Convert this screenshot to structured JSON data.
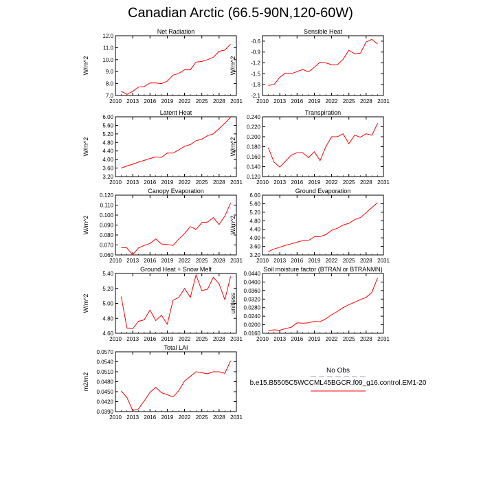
{
  "title": "Canadian Arctic (66.5-90N,120-60W)",
  "legend": {
    "obs_label": "No Obs",
    "model_label": "b.e15.B5505C5WCCML45BGCR.f09_g16.control.EM1-20",
    "obs_color": "#a0a0c0",
    "model_color": "#ff0000"
  },
  "chart_data": [
    {
      "type": "line",
      "title": "Net Radiation",
      "ylabel": "W/m^2",
      "xlim": [
        2010,
        2031
      ],
      "ylim": [
        7.0,
        12.0
      ],
      "xticks": [
        "2010",
        "2013",
        "2016",
        "2019",
        "2022",
        "2025",
        "2028",
        "2031"
      ],
      "yticks": [
        "7.0",
        "8.0",
        "9.0",
        "10.0",
        "11.0",
        "12.0"
      ],
      "series": [
        {
          "x": [
            2011,
            2012,
            2013,
            2014,
            2015,
            2016,
            2017,
            2018,
            2019,
            2020,
            2021,
            2022,
            2023,
            2024,
            2025,
            2026,
            2027,
            2028,
            2029,
            2030
          ],
          "values": [
            7.35,
            7.1,
            7.35,
            7.7,
            7.75,
            8.05,
            8.05,
            8.0,
            8.2,
            8.7,
            8.85,
            9.15,
            9.15,
            9.8,
            9.85,
            10.0,
            10.2,
            10.7,
            10.8,
            11.3
          ]
        }
      ]
    },
    {
      "type": "line",
      "title": "Sensible Heat",
      "ylabel": "W/m^2",
      "xlim": [
        2010,
        2031
      ],
      "ylim": [
        -2.1,
        -0.45
      ],
      "xticks": [
        "2010",
        "2013",
        "2016",
        "2019",
        "2022",
        "2025",
        "2028",
        "2031"
      ],
      "yticks": [
        "-2.1",
        "-1.8",
        "-1.5",
        "-1.2",
        "-0.9",
        "-0.6"
      ],
      "series": [
        {
          "x": [
            2011,
            2012,
            2013,
            2014,
            2015,
            2016,
            2017,
            2018,
            2019,
            2020,
            2021,
            2022,
            2023,
            2024,
            2025,
            2026,
            2027,
            2028,
            2029,
            2030
          ],
          "values": [
            -1.82,
            -1.8,
            -1.6,
            -1.48,
            -1.5,
            -1.44,
            -1.38,
            -1.45,
            -1.32,
            -1.18,
            -1.2,
            -1.25,
            -1.25,
            -1.1,
            -0.85,
            -0.95,
            -0.93,
            -0.62,
            -0.55,
            -0.68
          ]
        }
      ]
    },
    {
      "type": "line",
      "title": "Latent Heat",
      "ylabel": "W/m^2",
      "xlim": [
        2010,
        2031
      ],
      "ylim": [
        3.2,
        6.0
      ],
      "xticks": [
        "2010",
        "2013",
        "2016",
        "2019",
        "2022",
        "2025",
        "2028",
        "2031"
      ],
      "yticks": [
        "3.20",
        "3.60",
        "4.00",
        "4.40",
        "4.80",
        "5.20",
        "5.60",
        "6.00"
      ],
      "series": [
        {
          "x": [
            2011,
            2012,
            2013,
            2014,
            2015,
            2016,
            2017,
            2018,
            2019,
            2020,
            2021,
            2022,
            2023,
            2024,
            2025,
            2026,
            2027,
            2028,
            2029,
            2030
          ],
          "values": [
            3.6,
            3.7,
            3.78,
            3.88,
            3.96,
            4.05,
            4.12,
            4.1,
            4.3,
            4.3,
            4.45,
            4.62,
            4.7,
            4.88,
            4.95,
            5.12,
            5.2,
            5.45,
            5.7,
            5.98
          ]
        }
      ]
    },
    {
      "type": "line",
      "title": "Transpiration",
      "ylabel": "W/m^2",
      "xlim": [
        2010,
        2031
      ],
      "ylim": [
        0.12,
        0.24
      ],
      "xticks": [
        "2010",
        "2013",
        "2016",
        "2019",
        "2022",
        "2025",
        "2028",
        "2031"
      ],
      "yticks": [
        "0.120",
        "0.140",
        "0.160",
        "0.180",
        "0.200",
        "0.220",
        "0.240"
      ],
      "series": [
        {
          "x": [
            2011,
            2012,
            2013,
            2014,
            2015,
            2016,
            2017,
            2018,
            2019,
            2020,
            2021,
            2022,
            2023,
            2024,
            2025,
            2026,
            2027,
            2028,
            2029,
            2030
          ],
          "values": [
            0.178,
            0.149,
            0.139,
            0.151,
            0.163,
            0.168,
            0.168,
            0.158,
            0.17,
            0.152,
            0.18,
            0.2,
            0.2,
            0.206,
            0.186,
            0.203,
            0.199,
            0.206,
            0.203,
            0.227
          ]
        }
      ]
    },
    {
      "type": "line",
      "title": "Canopy Evaporation",
      "ylabel": "W/m^2",
      "xlim": [
        2010,
        2031
      ],
      "ylim": [
        0.06,
        0.12
      ],
      "xticks": [
        "2010",
        "2013",
        "2016",
        "2019",
        "2022",
        "2025",
        "2028",
        "2031"
      ],
      "yticks": [
        "0.060",
        "0.070",
        "0.080",
        "0.090",
        "0.100",
        "0.110",
        "0.120"
      ],
      "series": [
        {
          "x": [
            2011,
            2012,
            2013,
            2014,
            2015,
            2016,
            2017,
            2018,
            2019,
            2020,
            2021,
            2022,
            2023,
            2024,
            2025,
            2026,
            2027,
            2028,
            2029,
            2030
          ],
          "values": [
            0.0675,
            0.067,
            0.06,
            0.067,
            0.0695,
            0.0715,
            0.076,
            0.071,
            0.0705,
            0.0695,
            0.076,
            0.0815,
            0.0885,
            0.0855,
            0.0925,
            0.093,
            0.0975,
            0.0905,
            0.099,
            0.112
          ]
        }
      ]
    },
    {
      "type": "line",
      "title": "Ground Evaporation",
      "ylabel": "W/m^2",
      "xlim": [
        2010,
        2031
      ],
      "ylim": [
        3.2,
        6.0
      ],
      "xticks": [
        "2010",
        "2013",
        "2016",
        "2019",
        "2022",
        "2025",
        "2028",
        "2031"
      ],
      "yticks": [
        "3.20",
        "3.60",
        "4.00",
        "4.40",
        "4.80",
        "5.20",
        "5.60",
        "6.00"
      ],
      "series": [
        {
          "x": [
            2011,
            2012,
            2013,
            2014,
            2015,
            2016,
            2017,
            2018,
            2019,
            2020,
            2021,
            2022,
            2023,
            2024,
            2025,
            2026,
            2027,
            2028,
            2029,
            2030
          ],
          "values": [
            3.35,
            3.48,
            3.56,
            3.65,
            3.72,
            3.8,
            3.87,
            3.88,
            4.05,
            4.06,
            4.15,
            4.35,
            4.45,
            4.6,
            4.68,
            4.85,
            4.95,
            5.18,
            5.42,
            5.65
          ]
        }
      ]
    },
    {
      "type": "line",
      "title": "Ground Heat + Snow Melt",
      "ylabel": "W/m^2",
      "xlim": [
        2010,
        2031
      ],
      "ylim": [
        4.6,
        5.4
      ],
      "xticks": [
        "2010",
        "2013",
        "2016",
        "2019",
        "2022",
        "2025",
        "2028",
        "2031"
      ],
      "yticks": [
        "4.60",
        "4.80",
        "5.00",
        "5.20",
        "5.40"
      ],
      "series": [
        {
          "x": [
            2011,
            2012,
            2013,
            2014,
            2015,
            2016,
            2017,
            2018,
            2019,
            2020,
            2021,
            2022,
            2023,
            2024,
            2025,
            2026,
            2027,
            2028,
            2029,
            2030
          ],
          "values": [
            5.09,
            4.67,
            4.66,
            4.76,
            4.78,
            4.91,
            4.77,
            4.84,
            4.72,
            5.04,
            5.08,
            5.2,
            5.08,
            5.38,
            5.17,
            5.19,
            5.35,
            5.26,
            5.05,
            5.36
          ]
        }
      ]
    },
    {
      "type": "line",
      "title": "Soil moisture factor (BTRAN or BTRANMN)",
      "ylabel": "unitless",
      "xlim": [
        2010,
        2031
      ],
      "ylim": [
        0.016,
        0.044
      ],
      "xticks": [
        "2010",
        "2013",
        "2016",
        "2019",
        "2022",
        "2025",
        "2028",
        "2031"
      ],
      "yticks": [
        "0.0160",
        "0.0200",
        "0.0240",
        "0.0280",
        "0.0320",
        "0.0360",
        "0.0400",
        "0.0440"
      ],
      "series": [
        {
          "x": [
            2011,
            2012,
            2013,
            2014,
            2015,
            2016,
            2017,
            2018,
            2019,
            2020,
            2021,
            2022,
            2023,
            2024,
            2025,
            2026,
            2027,
            2028,
            2029,
            2030
          ],
          "values": [
            0.0172,
            0.0176,
            0.0174,
            0.0182,
            0.0188,
            0.0209,
            0.0207,
            0.0209,
            0.0216,
            0.0214,
            0.0228,
            0.0247,
            0.0262,
            0.028,
            0.0294,
            0.0305,
            0.0318,
            0.0328,
            0.0352,
            0.042
          ]
        }
      ]
    },
    {
      "type": "line",
      "title": "Total LAI",
      "ylabel": "m2/m2",
      "xlim": [
        2010,
        2031
      ],
      "ylim": [
        0.039,
        0.057
      ],
      "xticks": [
        "2010",
        "2013",
        "2016",
        "2019",
        "2022",
        "2025",
        "2028",
        "2031"
      ],
      "yticks": [
        "0.0390",
        "0.0420",
        "0.0450",
        "0.0480",
        "0.0510",
        "0.0540",
        "0.0570"
      ],
      "series": [
        {
          "x": [
            2011,
            2012,
            2013,
            2014,
            2015,
            2016,
            2017,
            2018,
            2019,
            2020,
            2021,
            2022,
            2023,
            2024,
            2025,
            2026,
            2027,
            2028,
            2029,
            2030
          ],
          "values": [
            0.0452,
            0.0432,
            0.0393,
            0.0398,
            0.0422,
            0.0448,
            0.0463,
            0.0447,
            0.0441,
            0.0434,
            0.0453,
            0.0482,
            0.0496,
            0.051,
            0.0507,
            0.0504,
            0.051,
            0.051,
            0.0505,
            0.0543
          ]
        }
      ]
    }
  ]
}
